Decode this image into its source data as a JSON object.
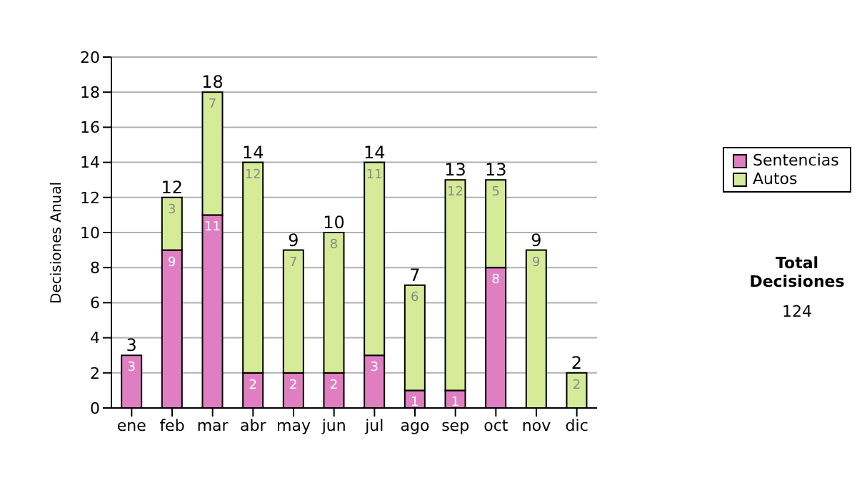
{
  "chart_data": {
    "type": "bar",
    "stacked": true,
    "ylabel": "Decisiones Anual",
    "categories": [
      "ene",
      "feb",
      "mar",
      "abr",
      "may",
      "jun",
      "jul",
      "ago",
      "sep",
      "oct",
      "nov",
      "dic"
    ],
    "series": [
      {
        "name": "Sentencias",
        "color": "#df7fc2",
        "values": [
          3,
          9,
          11,
          2,
          2,
          2,
          3,
          1,
          1,
          8,
          0,
          0
        ],
        "value_labels": [
          "3",
          "9",
          "11",
          "2",
          "2",
          "2",
          "3",
          "1",
          "1",
          "8",
          null,
          null
        ]
      },
      {
        "name": "Autos",
        "color": "#d6eb98",
        "values": [
          0,
          3,
          7,
          12,
          7,
          8,
          11,
          6,
          12,
          5,
          9,
          2
        ],
        "value_labels": [
          null,
          "3",
          "7",
          "12",
          "7",
          "8",
          "11",
          "6",
          "12",
          "5",
          "9",
          "2"
        ]
      }
    ],
    "totals": [
      "3",
      "12",
      "18",
      "14",
      "9",
      "10",
      "14",
      "7",
      "13",
      "13",
      "9",
      "2"
    ],
    "ylim": [
      0,
      20
    ],
    "yticks": [
      0,
      2,
      4,
      6,
      8,
      10,
      12,
      14,
      16,
      18,
      20
    ],
    "grid": "y",
    "legend": "right",
    "annotations": [
      "Total Decisiones",
      "124"
    ]
  }
}
